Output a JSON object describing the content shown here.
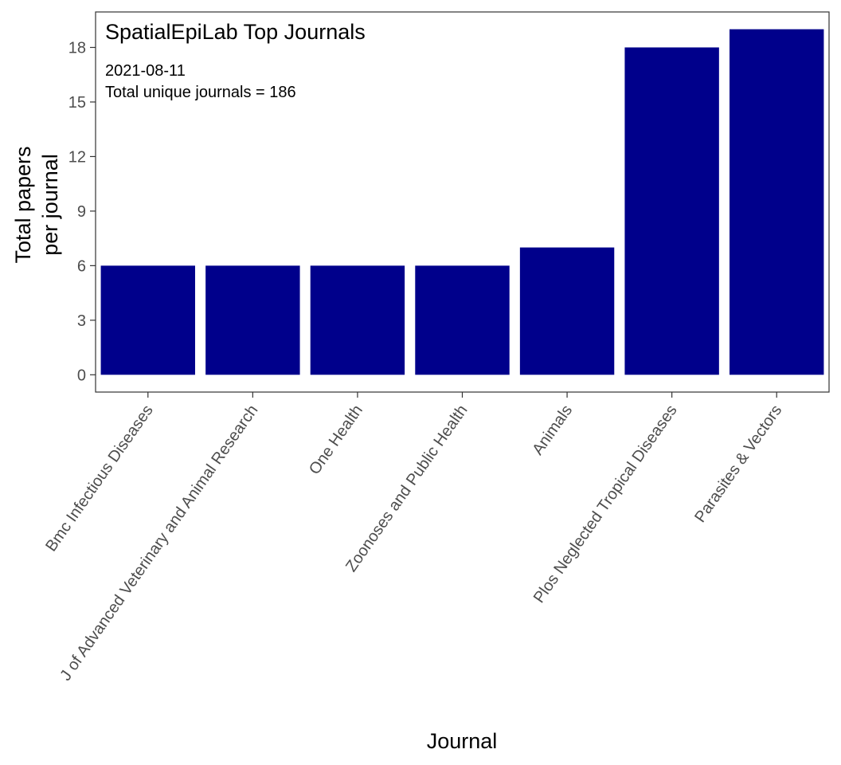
{
  "chart_data": {
    "type": "bar",
    "title": "SpatialEpiLab Top Journals",
    "subtitle_lines": [
      "2021-08-11",
      "Total unique journals =  186"
    ],
    "xlabel": "Journal",
    "ylabel_lines": [
      "Total papers",
      "per journal"
    ],
    "categories": [
      "Bmc Infectious Diseases",
      "J of Advanced Veterinary and Animal Research",
      "One Health",
      "Zoonoses and Public Health",
      "Animals",
      "Plos Neglected Tropical Diseases",
      "Parasites & Vectors"
    ],
    "values": [
      6,
      6,
      6,
      6,
      7,
      18,
      19
    ],
    "yticks": [
      0,
      3,
      6,
      9,
      12,
      15,
      18
    ],
    "ylim": [
      -0.95,
      19.95
    ],
    "bar_color": "#00008B",
    "grid": false,
    "legend": "none"
  }
}
